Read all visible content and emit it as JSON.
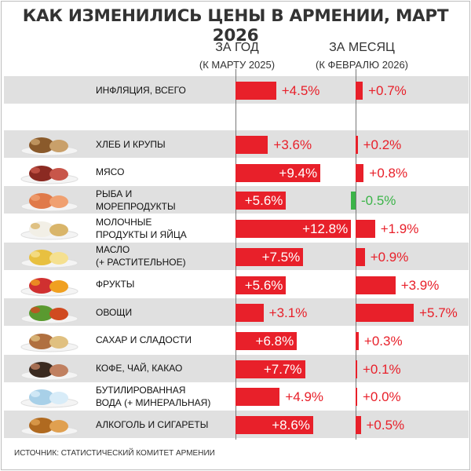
{
  "title": "КАК ИЗМЕНИЛИСЬ ЦЕНЫ В АРМЕНИИ, МАРТ 2026",
  "colors": {
    "increase": "#e8202a",
    "decrease": "#3cb449",
    "row_alt": "#e0e0e0"
  },
  "chart_data": {
    "type": "bar",
    "orientation": "horizontal",
    "title": "КАК ИЗМЕНИЛИСЬ ЦЕНЫ В АРМЕНИИ, МАРТ 2026",
    "series": [
      {
        "name": "ЗА ГОД",
        "subtitle": "(К МАРТУ 2025)",
        "values": [
          4.5,
          3.6,
          9.4,
          5.6,
          12.8,
          7.5,
          5.6,
          3.1,
          6.8,
          7.7,
          4.9,
          8.6
        ],
        "labels": [
          "+4.5%",
          "+3.6%",
          "+9.4%",
          "+5.6%",
          "+12.8%",
          "+7.5%",
          "+5.6%",
          "+3.1%",
          "+6.8%",
          "+7.7%",
          "+4.9%",
          "+8.6%"
        ]
      },
      {
        "name": "ЗА МЕСЯЦ",
        "subtitle": "(К ФЕВРАЛЮ 2026)",
        "values": [
          0.7,
          0.2,
          0.8,
          -0.5,
          1.9,
          0.9,
          3.9,
          5.7,
          0.3,
          0.1,
          0.0,
          0.5
        ],
        "labels": [
          "+0.7%",
          "+0.2%",
          "+0.8%",
          "-0.5%",
          "+1.9%",
          "+0.9%",
          "+3.9%",
          "+5.7%",
          "+0.3%",
          "+0.1%",
          "+0.0%",
          "+0.5%"
        ]
      }
    ],
    "categories": [
      {
        "label": "ИНФЛЯЦИЯ, ВСЕГО",
        "icon": ""
      },
      {
        "label": "ХЛЕБ И КРУПЫ",
        "icon": "bread-photo"
      },
      {
        "label": "МЯСО",
        "icon": "steak-photo"
      },
      {
        "label": "РЫБА И\nМОРЕПРОДУКТЫ",
        "icon": "salmon-photo"
      },
      {
        "label": "МОЛОЧНЫЕ\nПРОДУКТЫ И ЯЙЦА",
        "icon": "dairy-photo"
      },
      {
        "label": "МАСЛО\n(+ РАСТИТЕЛЬНОЕ)",
        "icon": "oil-photo"
      },
      {
        "label": "ФРУКТЫ",
        "icon": "fruit-photo"
      },
      {
        "label": "ОВОЩИ",
        "icon": "vegetables-photo"
      },
      {
        "label": "САХАР И СЛАДОСТИ",
        "icon": "sweets-photo"
      },
      {
        "label": "КОФЕ, ЧАЙ, КАКАО",
        "icon": "coffee-photo"
      },
      {
        "label": "БУТИЛИРОВАННАЯ\nВОДА (+ МИНЕРАЛЬНАЯ)",
        "icon": "water-bottles-photo"
      },
      {
        "label": "АЛКОГОЛЬ И СИГАРЕТЫ",
        "icon": "liquor-photo"
      }
    ]
  },
  "source": "ИСТОЧНИК: СТАТИСТИЧЕСКИЙ КОМИТЕТ АРМЕНИИ"
}
